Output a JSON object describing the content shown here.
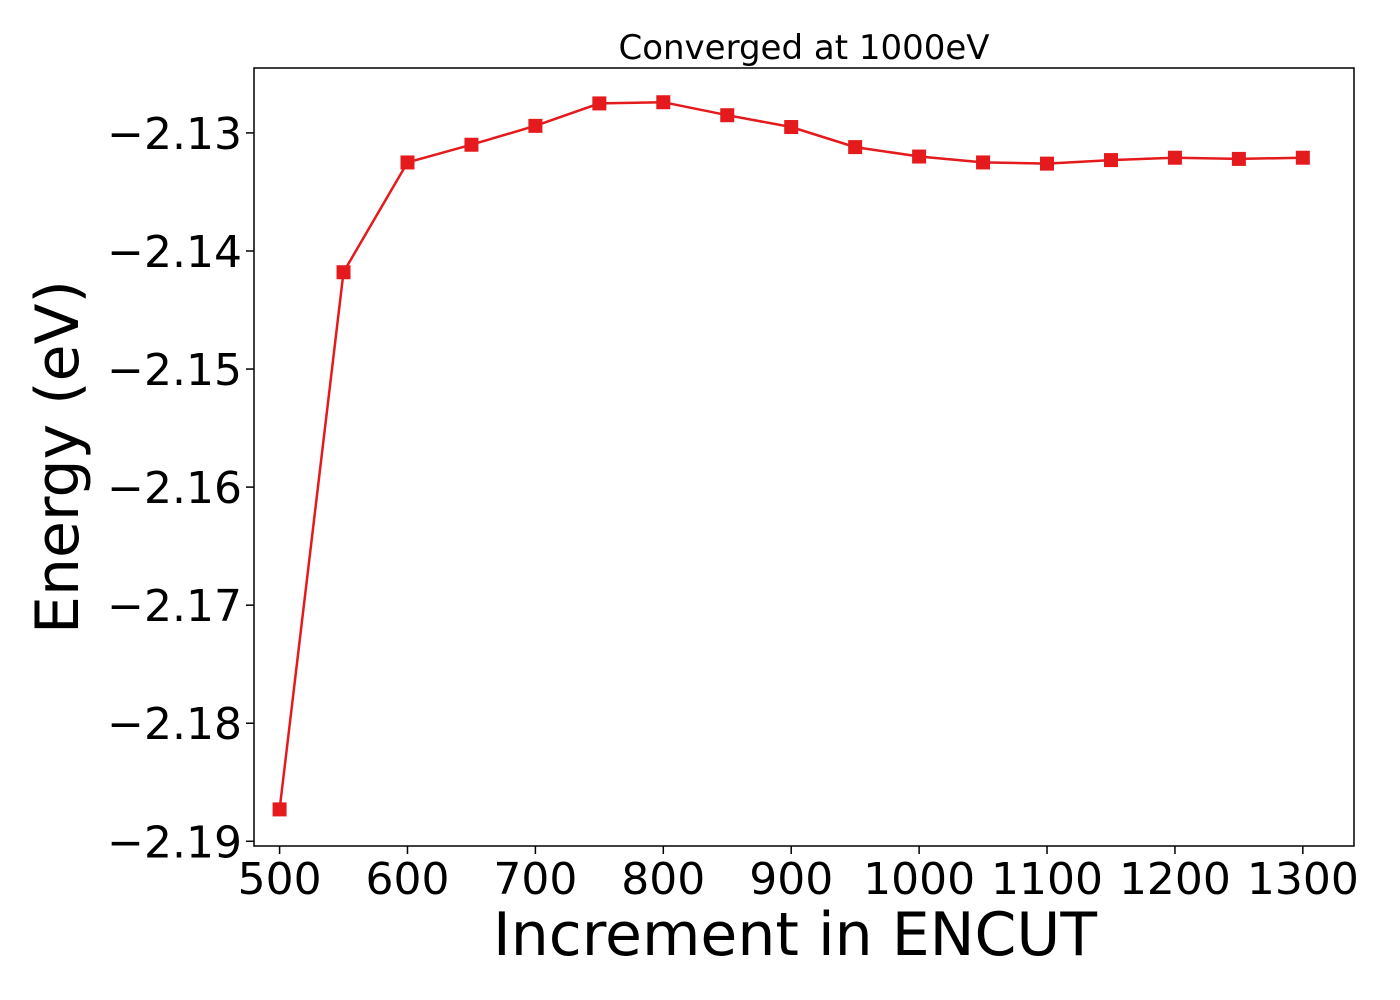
{
  "chart_data": {
    "type": "line",
    "title": "Converged at 1000eV",
    "xlabel": "Increment in ENCUT",
    "ylabel": "Energy (eV)",
    "xlim": [
      480,
      1340
    ],
    "ylim": [
      -2.1904,
      -2.1245
    ],
    "xticks": [
      500,
      600,
      700,
      800,
      900,
      1000,
      1100,
      1200,
      1300
    ],
    "xtick_labels": [
      "500",
      "600",
      "700",
      "800",
      "900",
      "1000",
      "1100",
      "1200",
      "1300"
    ],
    "yticks": [
      -2.19,
      -2.18,
      -2.17,
      -2.16,
      -2.15,
      -2.14,
      -2.13
    ],
    "ytick_labels": [
      "−2.19",
      "−2.18",
      "−2.17",
      "−2.16",
      "−2.15",
      "−2.14",
      "−2.13"
    ],
    "grid": false,
    "series": [
      {
        "color": "#e41a1c",
        "marker": "square",
        "x": [
          500,
          550,
          600,
          650,
          700,
          750,
          800,
          850,
          900,
          950,
          1000,
          1050,
          1100,
          1150,
          1200,
          1250,
          1300
        ],
        "y": [
          -2.1873,
          -2.1418,
          -2.1325,
          -2.131,
          -2.1294,
          -2.1275,
          -2.1274,
          -2.1285,
          -2.1295,
          -2.1312,
          -2.132,
          -2.1325,
          -2.1326,
          -2.1323,
          -2.1321,
          -2.1322,
          -2.1321
        ]
      }
    ]
  }
}
